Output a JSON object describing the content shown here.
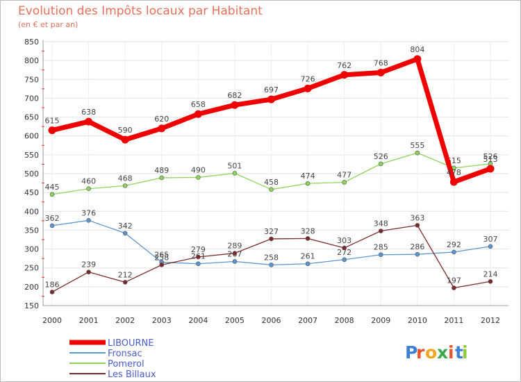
{
  "chart_data": {
    "type": "line",
    "title": "Evolution des Impôts locaux par Habitant",
    "subtitle": "(en € et par an)",
    "xlabel": "",
    "ylabel": "",
    "ylim": [
      150,
      850
    ],
    "yticks": [
      150,
      200,
      250,
      300,
      350,
      400,
      450,
      500,
      550,
      600,
      650,
      700,
      750,
      800,
      850
    ],
    "x": [
      "2000",
      "2001",
      "2002",
      "2003",
      "2004",
      "2005",
      "2006",
      "2007",
      "2008",
      "2009",
      "2010",
      "2011",
      "2012"
    ],
    "grid": true,
    "legend_position": "bottom-left",
    "series": [
      {
        "name": "LIBOURNE",
        "color": "#ee0000",
        "width": 7,
        "values": [
          615,
          638,
          590,
          620,
          658,
          682,
          697,
          726,
          762,
          768,
          804,
          478,
          513
        ]
      },
      {
        "name": "Fronsac",
        "color": "#5b95cf",
        "width": 1.3,
        "values": [
          362,
          376,
          342,
          265,
          261,
          267,
          258,
          261,
          272,
          285,
          286,
          292,
          307
        ]
      },
      {
        "name": "Pomerol",
        "color": "#8ed35a",
        "width": 1.3,
        "values": [
          445,
          460,
          468,
          489,
          490,
          501,
          458,
          474,
          477,
          526,
          555,
          515,
          526
        ]
      },
      {
        "name": "Les Billaux",
        "color": "#7a2a2a",
        "width": 1.3,
        "values": [
          186,
          239,
          212,
          258,
          279,
          289,
          327,
          328,
          303,
          348,
          363,
          197,
          214
        ]
      }
    ]
  },
  "logo": {
    "text": "Proxiti",
    "letter_colors": [
      "#3a7fd0",
      "#e8542a",
      "#f2a51d",
      "#3aa84b",
      "#e8542a",
      "#3a7fd0",
      "#8ccc3a"
    ]
  }
}
